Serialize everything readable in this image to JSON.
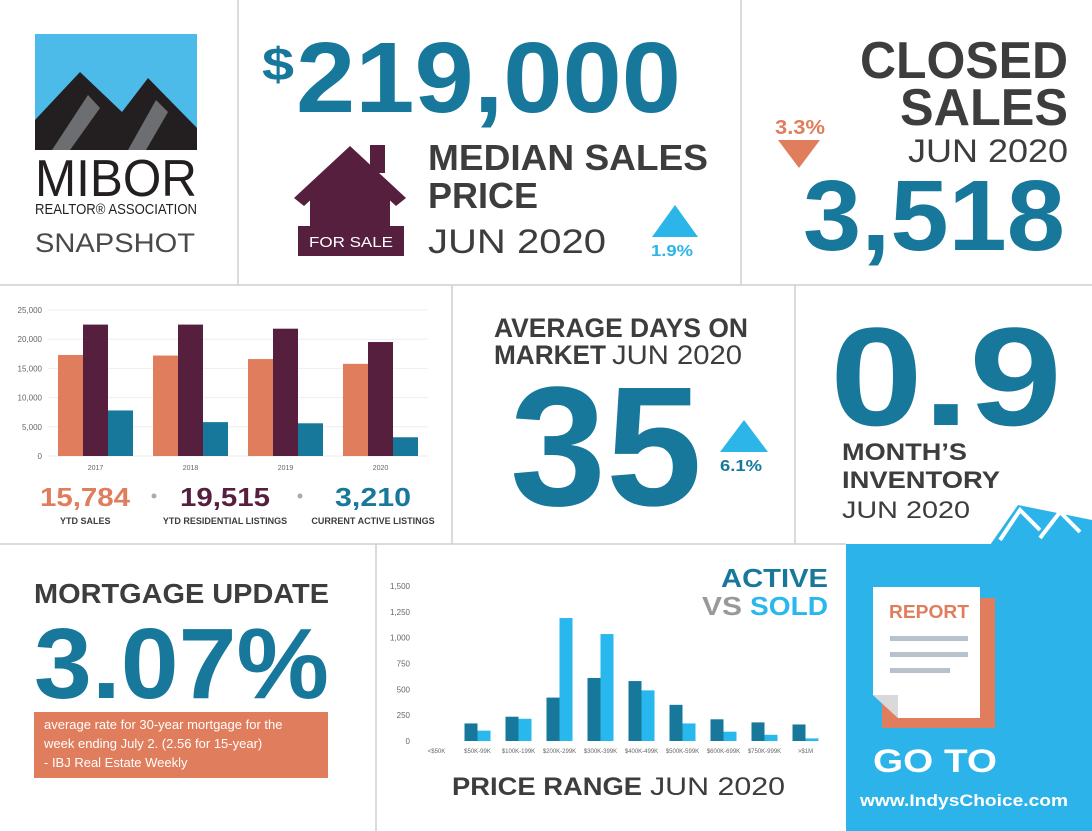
{
  "logo": {
    "name": "MIBOR",
    "tagline": "REALTOR® ASSOCIATION",
    "subtitle": "SNAPSHOT"
  },
  "median": {
    "currency": "$",
    "value": "219,000",
    "label_line1": "MEDIAN SALES",
    "label_line2": "PRICE",
    "date": "JUN 2020",
    "sign": "FOR SALE",
    "change": "1.9%"
  },
  "closed": {
    "label_line1": "CLOSED",
    "label_line2": "SALES",
    "date": "JUN 2020",
    "change": "3.3%",
    "value": "3,518"
  },
  "days": {
    "label_line1": "AVERAGE DAYS ON",
    "label_line2": "MARKET",
    "date": "JUN 2020",
    "value": "35",
    "change": "6.1%"
  },
  "inventory": {
    "value": "0.9",
    "label_line1": "MONTH’S",
    "label_line2": "INVENTORY",
    "date": "JUN 2020"
  },
  "mortgage": {
    "title": "MORTGAGE UPDATE",
    "value": "3.07%",
    "note": [
      "average rate for 30-year mortgage for the",
      "week ending July 2. (2.56 for 15-year)",
      "- IBJ Real Estate Weekly"
    ]
  },
  "report": {
    "doc_label": "REPORT",
    "cta": "GO TO",
    "url": "www.IndysChoice.com"
  },
  "chart_data": [
    {
      "type": "bar",
      "categories": [
        "2017",
        "2018",
        "2019",
        "2020"
      ],
      "series": [
        {
          "name": "YTD SALES",
          "color": "#e07d5c",
          "values": [
            17300,
            17200,
            16600,
            15784
          ],
          "value_labels": [
            null,
            null,
            null,
            "15,784"
          ]
        },
        {
          "name": "YTD RESIDENTIAL LISTINGS",
          "color": "#561f3d",
          "values": [
            22500,
            22500,
            21800,
            19515
          ],
          "value_labels": [
            null,
            null,
            null,
            "19,515"
          ]
        },
        {
          "name": "CURRENT ACTIVE LISTINGS",
          "color": "#17789b",
          "values": [
            7800,
            5800,
            5600,
            3210
          ],
          "value_labels": [
            null,
            null,
            null,
            "3,210"
          ]
        }
      ],
      "ylim": [
        0,
        25000
      ],
      "yticks": [
        0,
        {
          "value": 5000,
          "label": "5,000"
        },
        {
          "value": 10000,
          "label": "10,000"
        },
        {
          "value": 15000,
          "label": "15,000"
        },
        {
          "value": 20000,
          "label": "20,000"
        },
        {
          "value": 25000,
          "label": "25,000"
        }
      ],
      "grid": true
    },
    {
      "type": "bar",
      "series": [
        {
          "name": "ACTIVE",
          "color": "#17789b",
          "values": [
            0,
            170,
            235,
            420,
            610,
            580,
            350,
            210,
            180,
            160
          ]
        },
        {
          "name": "SOLD",
          "color": "#28b8ee",
          "values": [
            0,
            100,
            215,
            1190,
            1035,
            490,
            170,
            90,
            60,
            25
          ]
        }
      ],
      "title_connector": "VS",
      "categories": [
        "<$50K",
        "$50K-99K",
        "$100K-199K",
        "$200K-299K",
        "$300K-399K",
        "$400K-499K",
        "$500K-599K",
        "$600K-699K",
        "$750K-999K",
        ">$1M"
      ],
      "x_label": "PRICE RANGE",
      "x_label_date": "JUN 2020",
      "ylim": [
        0,
        1500
      ],
      "yticks": [
        0,
        250,
        500,
        750,
        {
          "value": 1000,
          "label": "1,000"
        },
        {
          "value": 1250,
          "label": "1,250"
        },
        {
          "value": 1500,
          "label": "1,500"
        }
      ],
      "grid": false
    }
  ]
}
